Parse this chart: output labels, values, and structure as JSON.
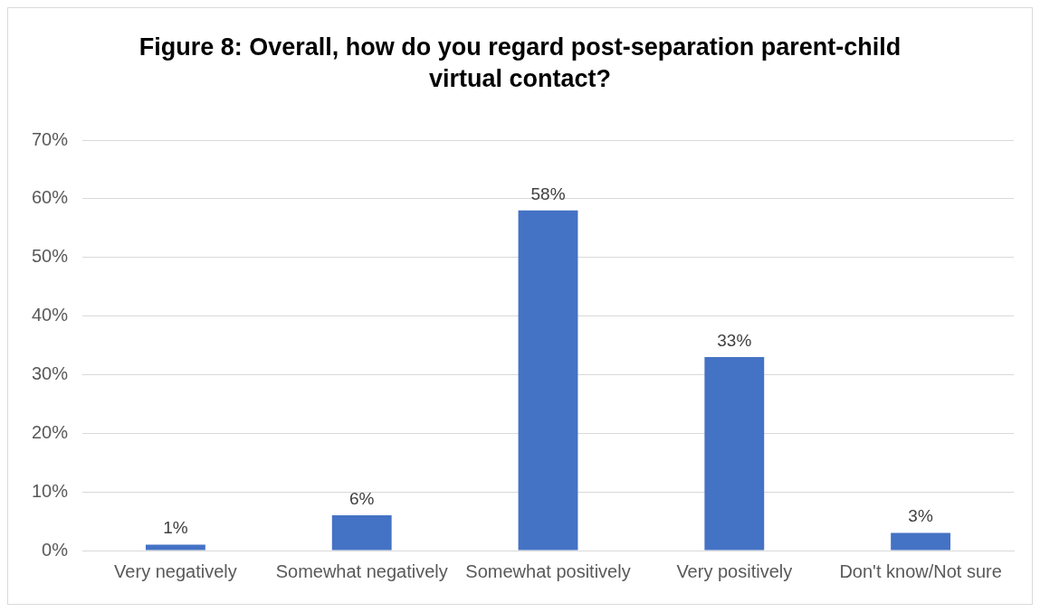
{
  "chart_data": {
    "type": "bar",
    "title": "Figure 8: Overall, how do you regard post-separation parent-child virtual contact?",
    "categories": [
      "Very negatively",
      "Somewhat negatively",
      "Somewhat positively",
      "Very positively",
      "Don't know/Not sure"
    ],
    "values": [
      1,
      6,
      58,
      33,
      3
    ],
    "value_labels": [
      "1%",
      "6%",
      "58%",
      "33%",
      "3%"
    ],
    "color": "#4472c4",
    "ylim": [
      0,
      70
    ],
    "yticks": [
      {
        "value": 0,
        "label": "0%"
      },
      {
        "value": 10,
        "label": "10%"
      },
      {
        "value": 20,
        "label": "20%"
      },
      {
        "value": 30,
        "label": "30%"
      },
      {
        "value": 40,
        "label": "40%"
      },
      {
        "value": 50,
        "label": "50%"
      },
      {
        "value": 60,
        "label": "60%"
      },
      {
        "value": 70,
        "label": "70%"
      }
    ],
    "grid": "y",
    "legend": false
  }
}
